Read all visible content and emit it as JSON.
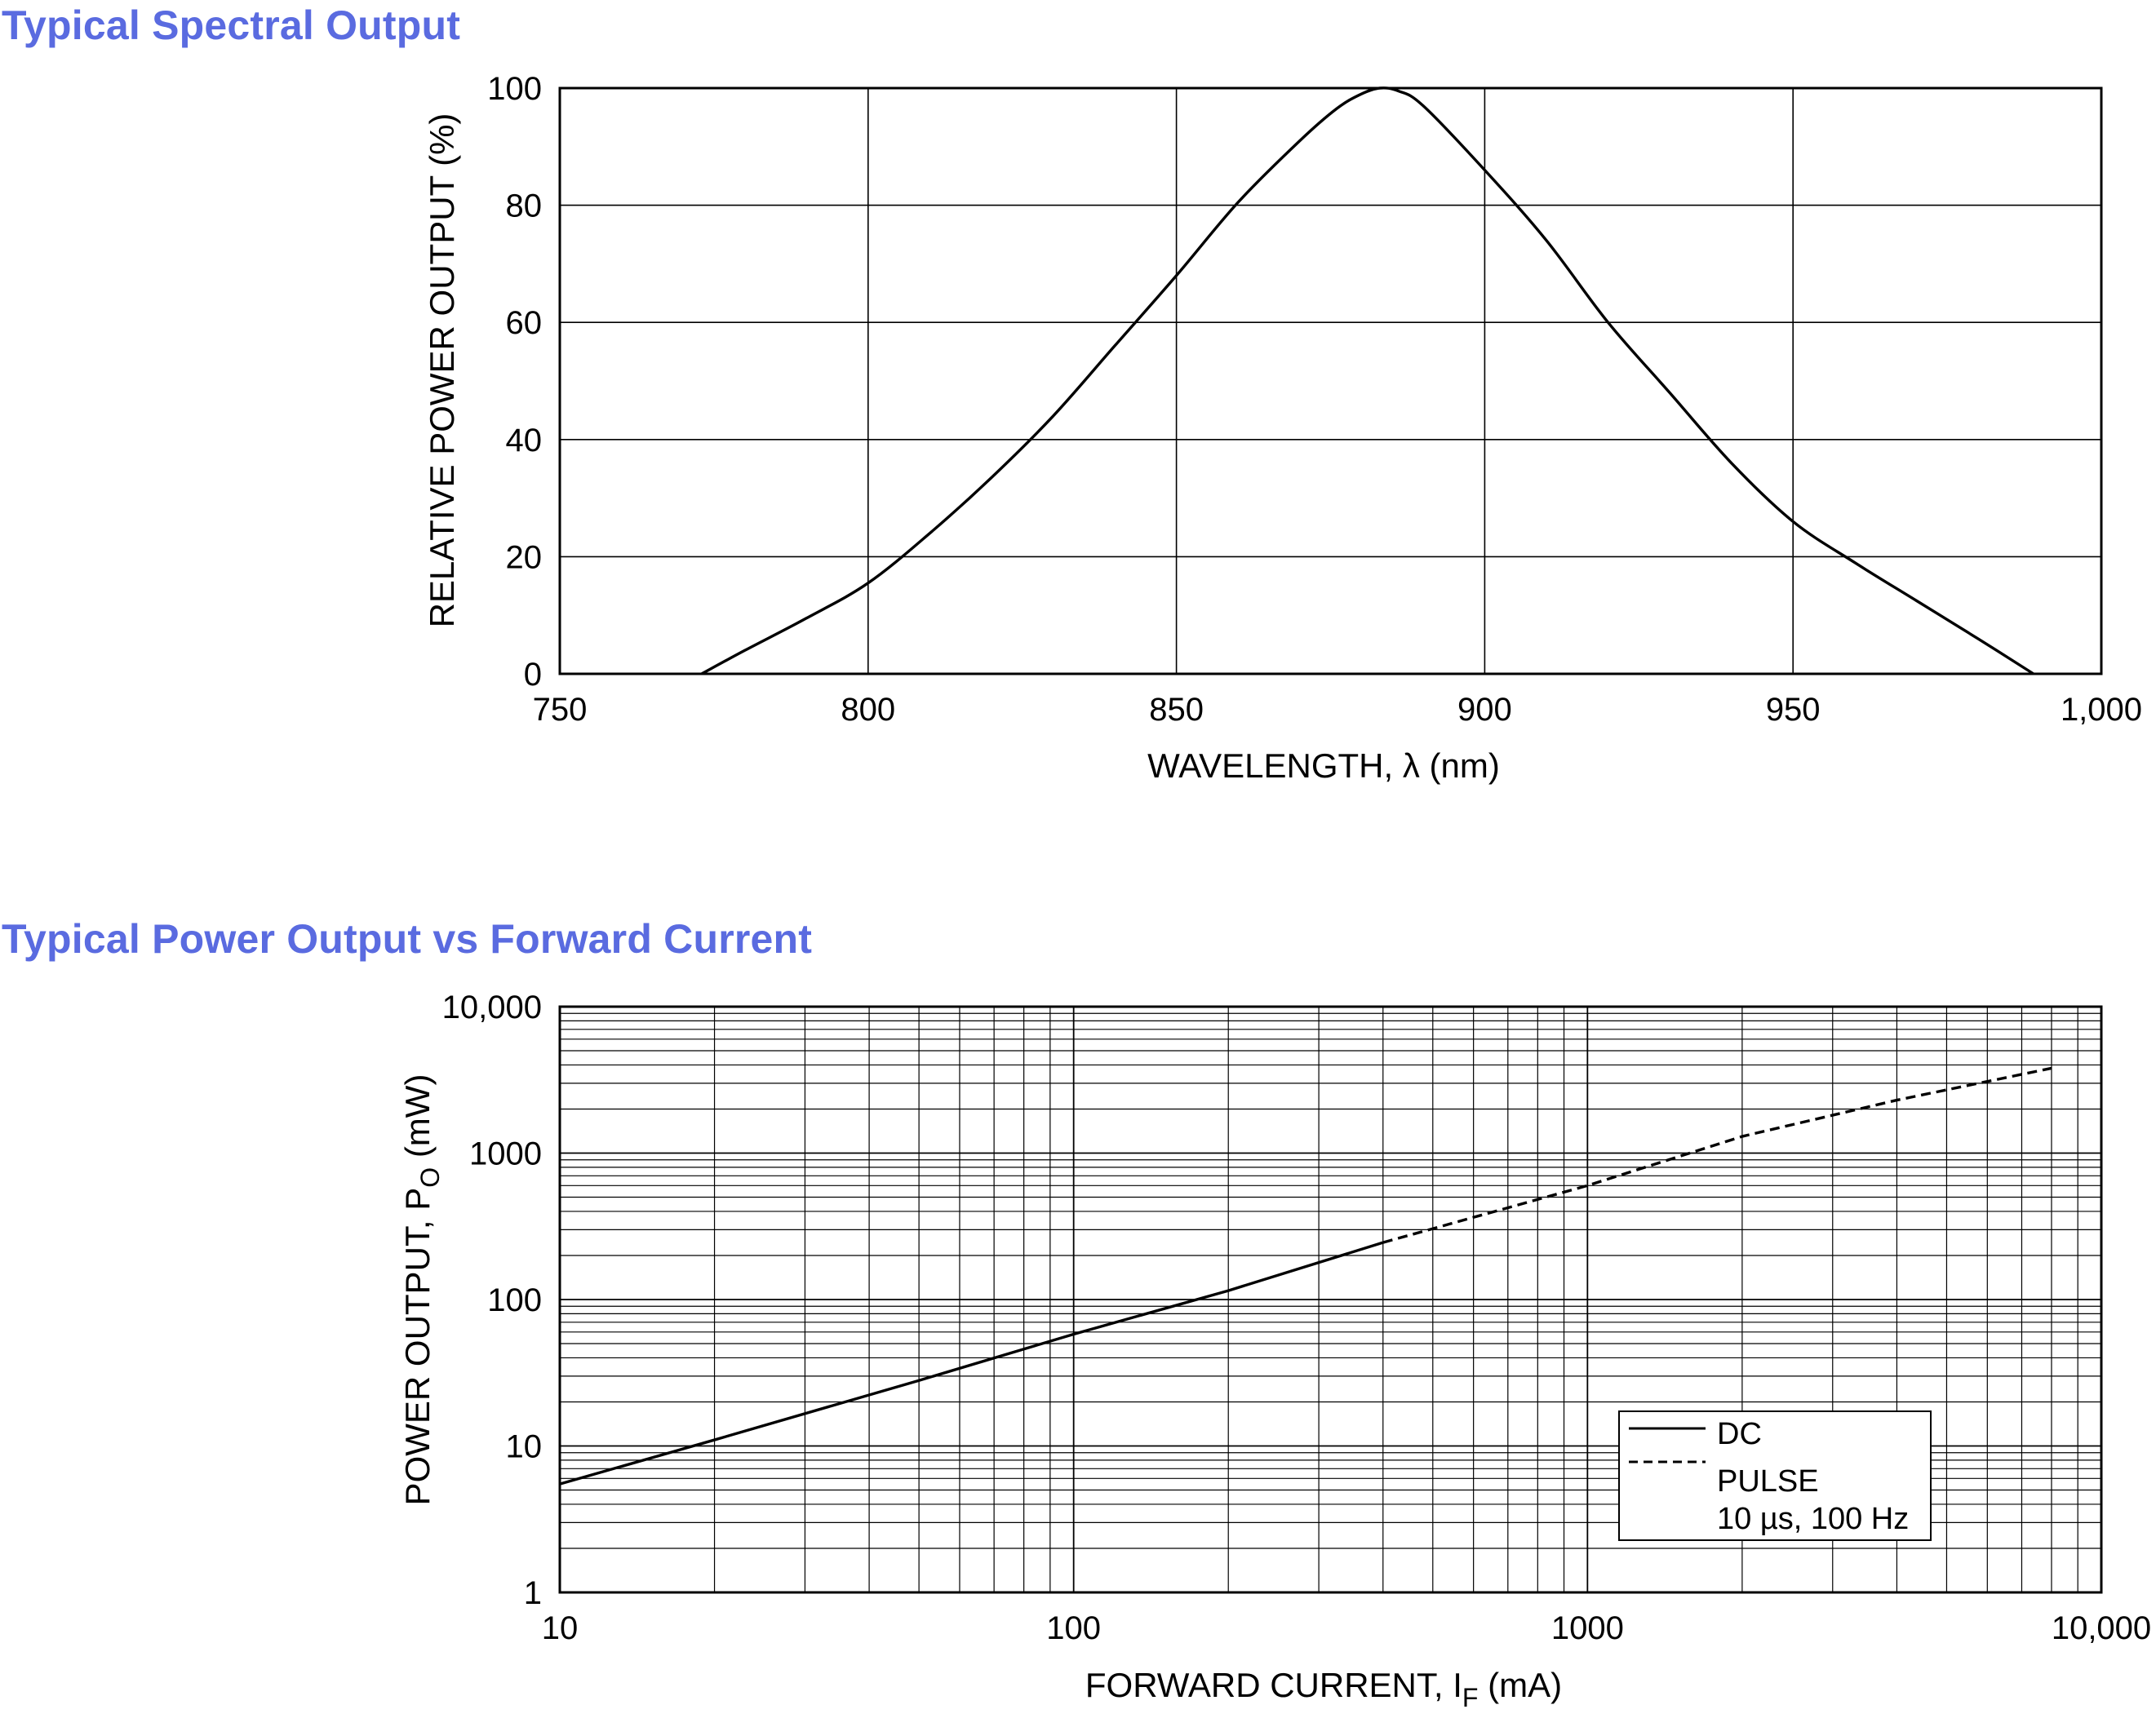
{
  "colors": {
    "title": "#5a6be0",
    "line": "#000000",
    "grid": "#000000"
  },
  "titles": {
    "spectral": "Typical Spectral Output",
    "power": "Typical Power Output vs Forward Current"
  },
  "chart_data": [
    {
      "type": "line",
      "title": "Typical Spectral Output",
      "xlabel": "WAVELENGTH, λ (nm)",
      "ylabel": "RELATIVE POWER OUTPUT (%)",
      "xlim": [
        750,
        1000
      ],
      "ylim": [
        0,
        100
      ],
      "grid": true,
      "x_ticks": [
        750,
        800,
        850,
        900,
        950,
        1000
      ],
      "x_tick_labels": [
        "750",
        "800",
        "850",
        "900",
        "950",
        "1,000"
      ],
      "y_ticks": [
        0,
        20,
        40,
        60,
        80,
        100
      ],
      "y_tick_labels": [
        "0",
        "20",
        "40",
        "60",
        "80",
        "100"
      ],
      "series": [
        {
          "name": "Relative power",
          "x": [
            773,
            780,
            790,
            800,
            810,
            820,
            830,
            840,
            850,
            860,
            870,
            876,
            880,
            883,
            886,
            890,
            900,
            910,
            920,
            930,
            940,
            950,
            960,
            970,
            980,
            989
          ],
          "y": [
            0,
            4,
            9.5,
            15.5,
            24,
            33.5,
            44,
            56,
            68,
            80.5,
            91,
            96.5,
            99,
            100,
            99.5,
            97,
            86,
            74,
            60,
            48,
            36,
            26,
            19,
            12.5,
            6,
            0
          ]
        }
      ]
    },
    {
      "type": "line",
      "title": "Typical Power Output vs Forward Current",
      "xlabel": "FORWARD CURRENT, IF (mA)",
      "xlabel_main": "FORWARD CURRENT, I",
      "xlabel_sub": "F",
      "xlabel_tail": " (mA)",
      "ylabel": "POWER OUTPUT, PO (mW)",
      "ylabel_main": "POWER OUTPUT, P",
      "ylabel_sub": "O",
      "ylabel_tail": " (mW)",
      "x_scale": "log",
      "y_scale": "log",
      "xlim": [
        10,
        10000
      ],
      "ylim": [
        1,
        10000
      ],
      "grid": true,
      "x_ticks": [
        10,
        100,
        1000,
        10000
      ],
      "x_tick_labels": [
        "10",
        "100",
        "1000",
        "10,000"
      ],
      "y_ticks": [
        1,
        10,
        100,
        1000,
        10000
      ],
      "y_tick_labels": [
        "1",
        "10",
        "100",
        "1000",
        "10,000"
      ],
      "legend": {
        "placement": "bottom-right",
        "dc_label": "DC",
        "pulse_label": "PULSE",
        "pulse_detail": "10 µs, 100 Hz"
      },
      "series": [
        {
          "name": "DC",
          "style": "solid",
          "x": [
            10,
            20,
            50,
            100,
            200,
            400
          ],
          "y": [
            5.5,
            11,
            28,
            58,
            115,
            245
          ]
        },
        {
          "name": "PULSE 10 µs, 100 Hz",
          "style": "dashed",
          "x": [
            400,
            1000,
            2000,
            4000,
            8000
          ],
          "y": [
            245,
            600,
            1300,
            2300,
            3800
          ]
        }
      ]
    }
  ]
}
